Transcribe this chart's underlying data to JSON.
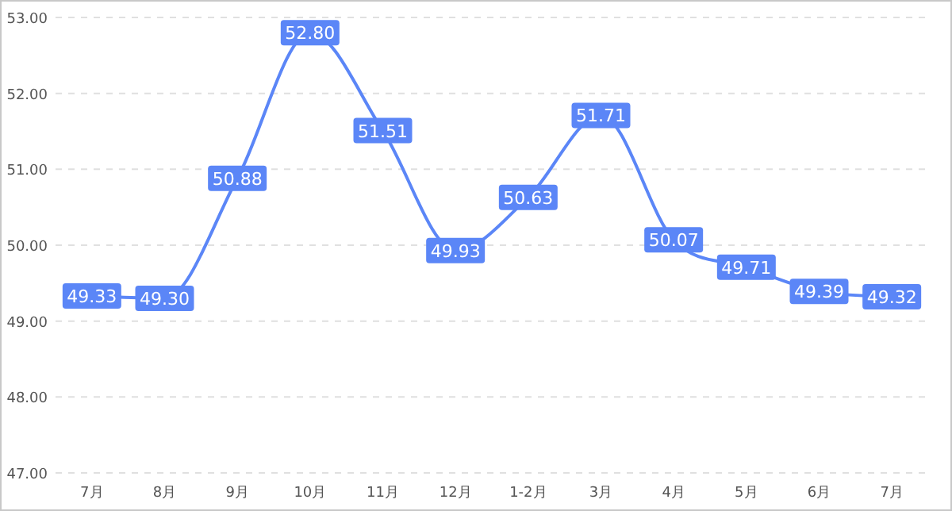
{
  "chart_data": {
    "type": "line",
    "categories": [
      "7月",
      "8月",
      "9月",
      "10月",
      "11月",
      "12月",
      "1-2月",
      "3月",
      "4月",
      "5月",
      "6月",
      "7月"
    ],
    "series": [
      {
        "color": "#5b86f7",
        "values": [
          49.33,
          49.3,
          50.88,
          52.8,
          51.51,
          49.93,
          50.63,
          51.71,
          50.07,
          49.71,
          49.39,
          49.32
        ],
        "value_labels": [
          "49.33",
          "49.30",
          "50.88",
          "52.80",
          "51.51",
          "49.93",
          "50.63",
          "51.71",
          "50.07",
          "49.71",
          "49.39",
          "49.32"
        ]
      }
    ],
    "ylim": [
      47,
      53
    ],
    "yticks": [
      {
        "value": 47,
        "label": "47.00"
      },
      {
        "value": 48,
        "label": "48.00"
      },
      {
        "value": 49,
        "label": "49.00"
      },
      {
        "value": 50,
        "label": "50.00"
      },
      {
        "value": 51,
        "label": "51.00"
      },
      {
        "value": 52,
        "label": "52.00"
      },
      {
        "value": 53,
        "label": "53.00"
      }
    ],
    "grid": "y",
    "line_style": "solid",
    "marker": "square"
  }
}
